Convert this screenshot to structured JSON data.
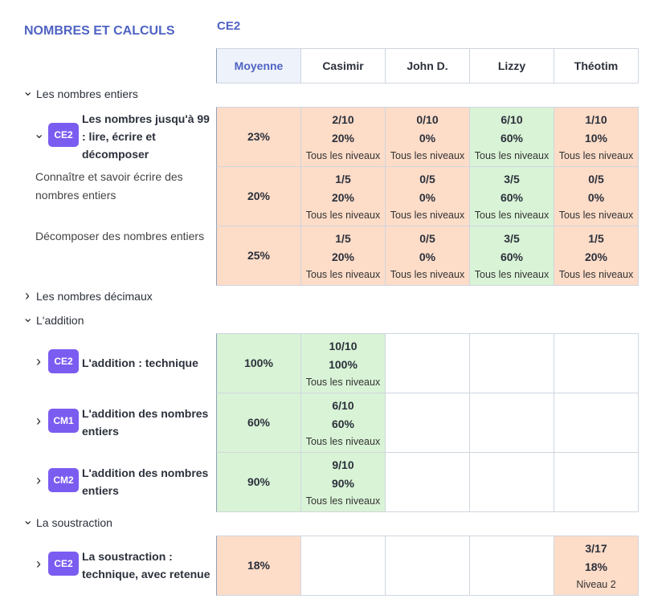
{
  "header": {
    "section_title": "NOMBRES ET CALCULS",
    "level": "CE2"
  },
  "columns": [
    "Moyenne",
    "Casimir",
    "John D.",
    "Lizzy",
    "Théotim"
  ],
  "groups": [
    {
      "label": "Les nombres entiers",
      "expanded": true,
      "rows": [
        {
          "badge": "CE2",
          "label": "Les nombres jusqu'à 99 : lire, écrire et décomposer",
          "expanded": true,
          "average": "23%",
          "color": "#fddcc8",
          "cells": [
            {
              "score": "2/10",
              "percent": "20%",
              "level": "Tous les niveaux",
              "color": "#fddcc8"
            },
            {
              "score": "0/10",
              "percent": "0%",
              "level": "Tous les niveaux",
              "color": "#fddcc8"
            },
            {
              "score": "6/10",
              "percent": "60%",
              "level": "Tous les niveaux",
              "color": "#d9f3d6"
            },
            {
              "score": "1/10",
              "percent": "10%",
              "level": "Tous les niveaux",
              "color": "#fddcc8"
            }
          ]
        },
        {
          "label": "Connaître et savoir écrire des nombres entiers",
          "average": "20%",
          "color": "#fddcc8",
          "cells": [
            {
              "score": "1/5",
              "percent": "20%",
              "level": "Tous les niveaux",
              "color": "#fddcc8"
            },
            {
              "score": "0/5",
              "percent": "0%",
              "level": "Tous les niveaux",
              "color": "#fddcc8"
            },
            {
              "score": "3/5",
              "percent": "60%",
              "level": "Tous les niveaux",
              "color": "#d9f3d6"
            },
            {
              "score": "0/5",
              "percent": "0%",
              "level": "Tous les niveaux",
              "color": "#fddcc8"
            }
          ]
        },
        {
          "label": "Décomposer des nombres entiers",
          "average": "25%",
          "color": "#fddcc8",
          "cells": [
            {
              "score": "1/5",
              "percent": "20%",
              "level": "Tous les niveaux",
              "color": "#fddcc8"
            },
            {
              "score": "0/5",
              "percent": "0%",
              "level": "Tous les niveaux",
              "color": "#fddcc8"
            },
            {
              "score": "3/5",
              "percent": "60%",
              "level": "Tous les niveaux",
              "color": "#d9f3d6"
            },
            {
              "score": "1/5",
              "percent": "20%",
              "level": "Tous les niveaux",
              "color": "#fddcc8"
            }
          ]
        }
      ]
    },
    {
      "label": "Les nombres décimaux",
      "expanded": false,
      "rows": []
    },
    {
      "label": "L'addition",
      "expanded": true,
      "rows": [
        {
          "badge": "CE2",
          "label": "L'addition : technique",
          "expanded": false,
          "average": "100%",
          "color": "#d9f3d6",
          "cells": [
            {
              "score": "10/10",
              "percent": "100%",
              "level": "Tous les niveaux",
              "color": "#d9f3d6"
            },
            null,
            null,
            null
          ]
        },
        {
          "badge": "CM1",
          "label": "L'addition des nombres entiers",
          "expanded": false,
          "average": "60%",
          "color": "#d9f3d6",
          "cells": [
            {
              "score": "6/10",
              "percent": "60%",
              "level": "Tous les niveaux",
              "color": "#d9f3d6"
            },
            null,
            null,
            null
          ]
        },
        {
          "badge": "CM2",
          "label": "L'addition des nombres entiers",
          "expanded": false,
          "average": "90%",
          "color": "#d9f3d6",
          "cells": [
            {
              "score": "9/10",
              "percent": "90%",
              "level": "Tous les niveaux",
              "color": "#d9f3d6"
            },
            null,
            null,
            null
          ]
        }
      ]
    },
    {
      "label": "La soustraction",
      "expanded": true,
      "rows": [
        {
          "badge": "CE2",
          "label": "La soustraction : technique, avec retenue",
          "expanded": false,
          "average": "18%",
          "color": "#fddcc8",
          "cells": [
            null,
            null,
            null,
            {
              "score": "3/17",
              "percent": "18%",
              "level": "Niveau 2",
              "color": "#fddcc8"
            }
          ]
        }
      ]
    }
  ]
}
